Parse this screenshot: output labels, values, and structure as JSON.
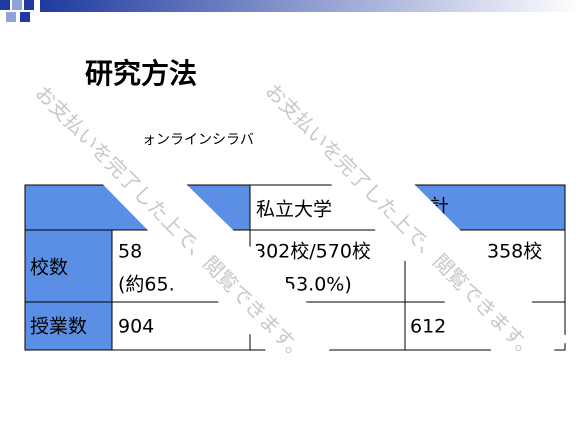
{
  "header": {
    "title": "研究方法"
  },
  "intro_text": "ォンラインシラバ",
  "table": {
    "header": [
      "私立大学",
      "計"
    ],
    "rows": [
      {
        "label": "校数",
        "cells": [
          [
            "58",
            "(約65."
          ],
          [
            "302校/570校",
            "53.0%)"
          ],
          [
            "358校"
          ]
        ]
      },
      {
        "label": "授業数",
        "cells": [
          [
            "904"
          ],
          [],
          [
            "612"
          ]
        ]
      }
    ]
  },
  "watermarks": [
    "お支払いを完了した上で、閲覧できます。",
    "お支払いを完了した上で、閲覧できます。"
  ]
}
